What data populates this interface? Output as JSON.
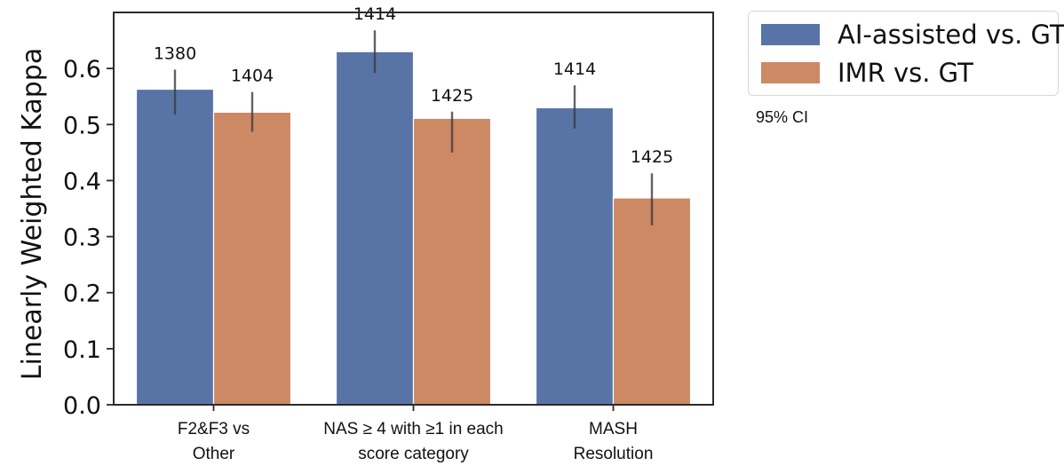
{
  "chart_data": {
    "type": "bar",
    "ylabel": "Linearly Weighted Kappa",
    "ylim": [
      0.0,
      0.7
    ],
    "yticks": [
      "0.0",
      "0.1",
      "0.2",
      "0.3",
      "0.4",
      "0.5",
      "0.6"
    ],
    "categories": [
      [
        "F2&F3 vs",
        "Other"
      ],
      [
        "NAS ≥ 4 with ≥1 in each",
        "score category"
      ],
      [
        "MASH",
        "Resolution"
      ]
    ],
    "series": [
      {
        "name": "AI-assisted vs. GT",
        "color": "#5874a7",
        "values": [
          0.563,
          0.63,
          0.53
        ],
        "ci_low": [
          0.518,
          0.592,
          0.493
        ],
        "ci_high": [
          0.598,
          0.668,
          0.57
        ],
        "labels": [
          "1380",
          "1414",
          "1414"
        ]
      },
      {
        "name": "IMR vs. GT",
        "color": "#cd8964",
        "values": [
          0.522,
          0.511,
          0.369
        ],
        "ci_low": [
          0.487,
          0.45,
          0.32
        ],
        "ci_high": [
          0.558,
          0.523,
          0.413
        ],
        "labels": [
          "1404",
          "1425",
          "1425"
        ]
      }
    ],
    "legend_location": "outside top-right",
    "annotation": "95% CI",
    "grid": false
  }
}
